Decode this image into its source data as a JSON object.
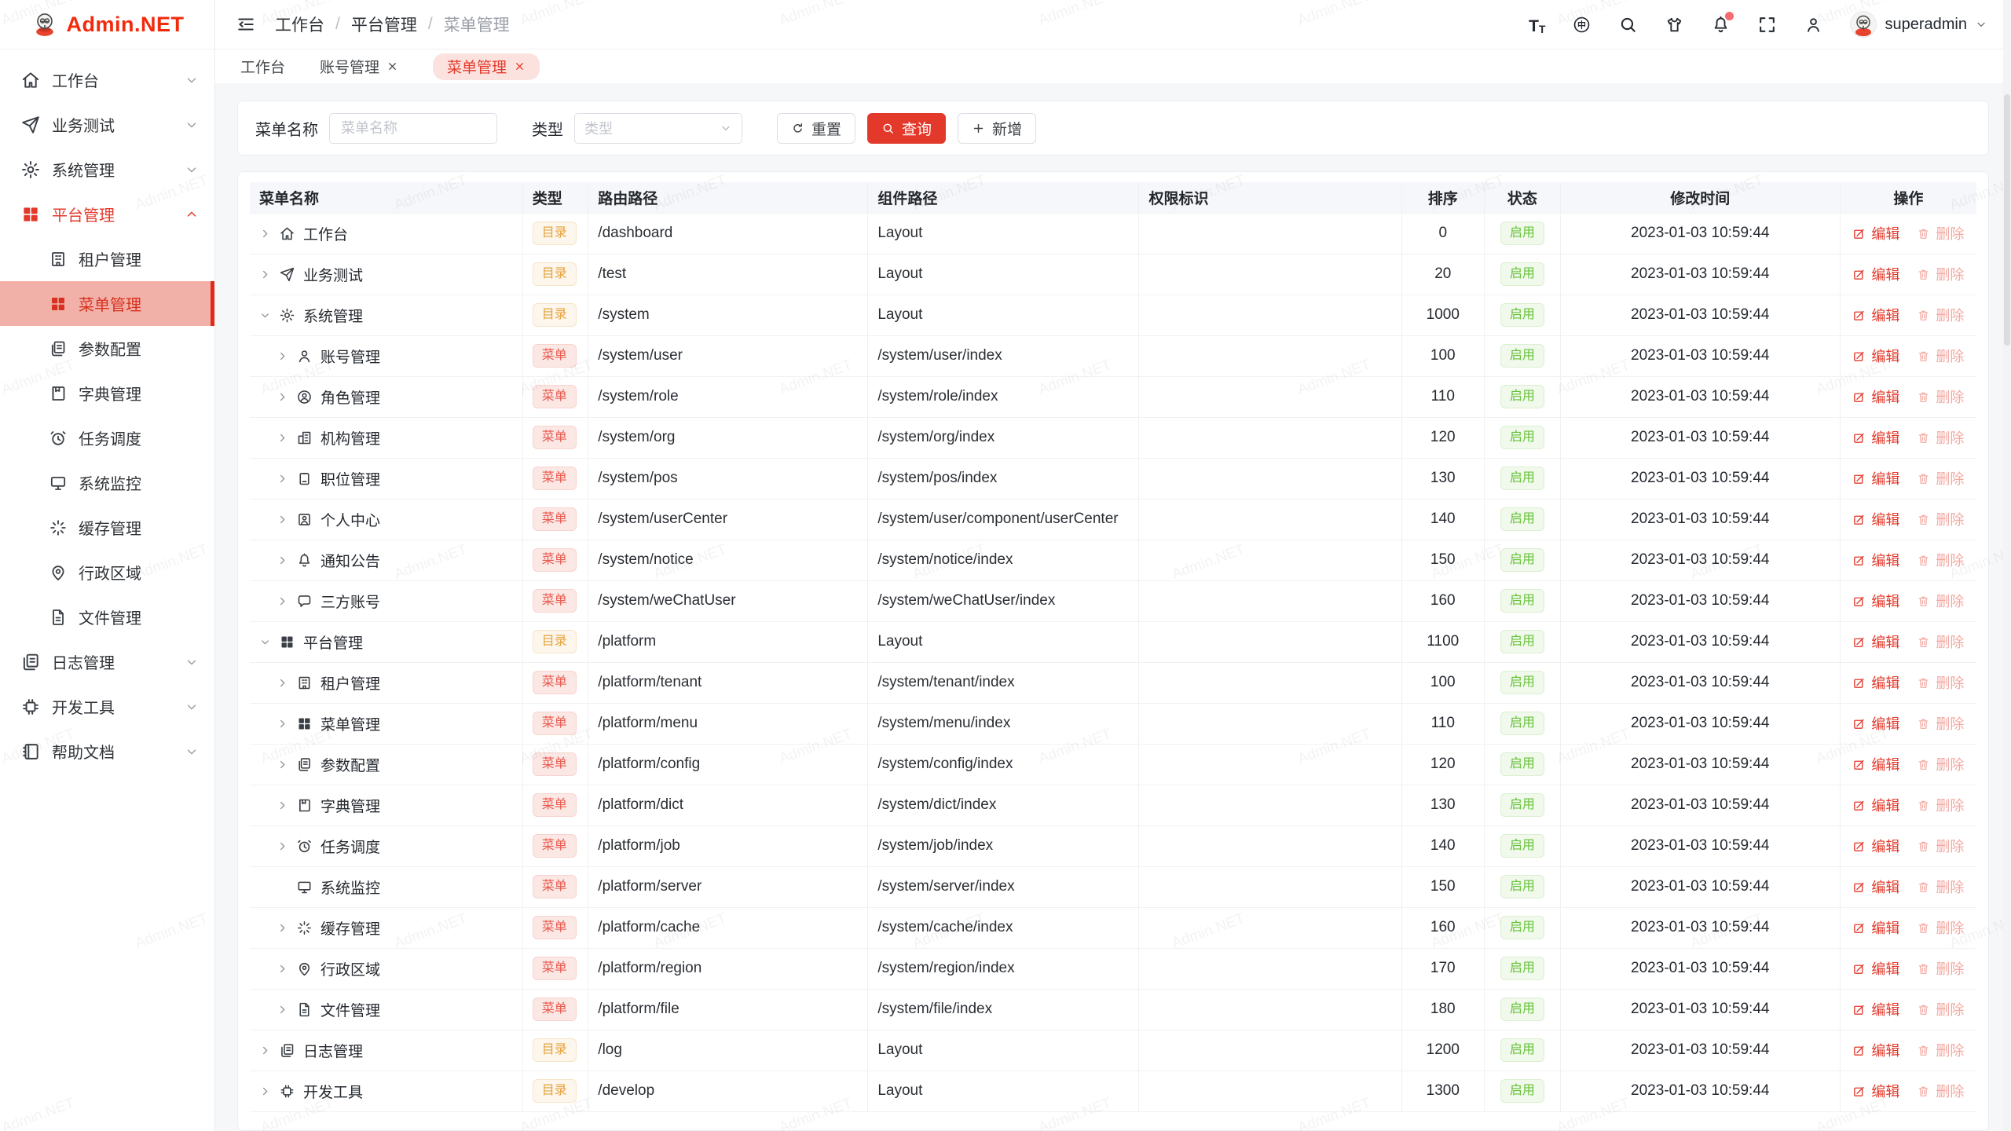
{
  "app": {
    "logo_text": "Admin.NET",
    "watermark": "Admin.NET",
    "accent_color": "#e3392b"
  },
  "sidebar": {
    "items": [
      {
        "label": "工作台",
        "icon": "home-icon",
        "chevron": "down"
      },
      {
        "label": "业务测试",
        "icon": "send-icon",
        "chevron": "down"
      },
      {
        "label": "系统管理",
        "icon": "gear-icon",
        "chevron": "down"
      },
      {
        "label": "平台管理",
        "icon": "grid-icon",
        "chevron": "up",
        "active_parent": true,
        "children": [
          {
            "label": "租户管理",
            "icon": "tenant-icon"
          },
          {
            "label": "菜单管理",
            "icon": "grid-icon",
            "active": true
          },
          {
            "label": "参数配置",
            "icon": "docs-icon"
          },
          {
            "label": "字典管理",
            "icon": "book-icon"
          },
          {
            "label": "任务调度",
            "icon": "alarm-icon"
          },
          {
            "label": "系统监控",
            "icon": "monitor-icon"
          },
          {
            "label": "缓存管理",
            "icon": "spinner-icon"
          },
          {
            "label": "行政区域",
            "icon": "pin-icon"
          },
          {
            "label": "文件管理",
            "icon": "file-icon"
          }
        ]
      },
      {
        "label": "日志管理",
        "icon": "logs-icon",
        "chevron": "down"
      },
      {
        "label": "开发工具",
        "icon": "chip-icon",
        "chevron": "down"
      },
      {
        "label": "帮助文档",
        "icon": "help-icon",
        "chevron": "down"
      }
    ]
  },
  "header": {
    "breadcrumb": [
      "工作台",
      "平台管理",
      "菜单管理"
    ],
    "tools": [
      "textsize-icon",
      "lang-icon",
      "search-icon",
      "theme-icon",
      "bell-icon",
      "fullscreen-icon",
      "person-icon"
    ],
    "bell_has_dot": true,
    "username": "superadmin"
  },
  "tabs": [
    {
      "label": "工作台",
      "closable": false,
      "active": false
    },
    {
      "label": "账号管理",
      "closable": true,
      "active": false
    },
    {
      "label": "菜单管理",
      "closable": true,
      "active": true
    }
  ],
  "search": {
    "name_label": "菜单名称",
    "name_placeholder": "菜单名称",
    "name_value": "",
    "type_label": "类型",
    "type_placeholder": "类型",
    "reset_label": "重置",
    "query_label": "查询",
    "add_label": "新增"
  },
  "table": {
    "columns": [
      "菜单名称",
      "类型",
      "路由路径",
      "组件路径",
      "权限标识",
      "排序",
      "状态",
      "修改时间",
      "操作"
    ],
    "col_widths": [
      "15.8%",
      "3.8%",
      "16.2%",
      "15.7%",
      "15.2%",
      "4.8%",
      "4.4%",
      "16.2%",
      "7.9%"
    ],
    "badge_labels": {
      "dir": "目录",
      "menu": "菜单"
    },
    "status_enabled": "启用",
    "edit_label": "编辑",
    "delete_label": "删除",
    "modified_time": "2023-01-03 10:59:44",
    "rows": [
      {
        "name": "工作台",
        "icon": "home-icon",
        "level": 0,
        "arrow": "right",
        "type": "dir",
        "route": "/dashboard",
        "component": "Layout",
        "perm": "",
        "sort": "0",
        "status": "启用"
      },
      {
        "name": "业务测试",
        "icon": "send-icon",
        "level": 0,
        "arrow": "right",
        "type": "dir",
        "route": "/test",
        "component": "Layout",
        "perm": "",
        "sort": "20",
        "status": "启用"
      },
      {
        "name": "系统管理",
        "icon": "gear-icon",
        "level": 0,
        "arrow": "down",
        "type": "dir",
        "route": "/system",
        "component": "Layout",
        "perm": "",
        "sort": "1000",
        "status": "启用"
      },
      {
        "name": "账号管理",
        "icon": "user-icon",
        "level": 1,
        "arrow": "right",
        "type": "menu",
        "route": "/system/user",
        "component": "/system/user/index",
        "perm": "",
        "sort": "100",
        "status": "启用"
      },
      {
        "name": "角色管理",
        "icon": "role-icon",
        "level": 1,
        "arrow": "right",
        "type": "menu",
        "route": "/system/role",
        "component": "/system/role/index",
        "perm": "",
        "sort": "110",
        "status": "启用"
      },
      {
        "name": "机构管理",
        "icon": "org-icon",
        "level": 1,
        "arrow": "right",
        "type": "menu",
        "route": "/system/org",
        "component": "/system/org/index",
        "perm": "",
        "sort": "120",
        "status": "启用"
      },
      {
        "name": "职位管理",
        "icon": "pos-icon",
        "level": 1,
        "arrow": "right",
        "type": "menu",
        "route": "/system/pos",
        "component": "/system/pos/index",
        "perm": "",
        "sort": "130",
        "status": "启用"
      },
      {
        "name": "个人中心",
        "icon": "usercenter-icon",
        "level": 1,
        "arrow": "right",
        "type": "menu",
        "route": "/system/userCenter",
        "component": "/system/user/component/userCenter",
        "perm": "",
        "sort": "140",
        "status": "启用"
      },
      {
        "name": "通知公告",
        "icon": "bell-icon",
        "level": 1,
        "arrow": "right",
        "type": "menu",
        "route": "/system/notice",
        "component": "/system/notice/index",
        "perm": "",
        "sort": "150",
        "status": "启用"
      },
      {
        "name": "三方账号",
        "icon": "chat-icon",
        "level": 1,
        "arrow": "right",
        "type": "menu",
        "route": "/system/weChatUser",
        "component": "/system/weChatUser/index",
        "perm": "",
        "sort": "160",
        "status": "启用"
      },
      {
        "name": "平台管理",
        "icon": "grid-icon",
        "level": 0,
        "arrow": "down",
        "type": "dir",
        "route": "/platform",
        "component": "Layout",
        "perm": "",
        "sort": "1100",
        "status": "启用"
      },
      {
        "name": "租户管理",
        "icon": "tenant-icon",
        "level": 1,
        "arrow": "right",
        "type": "menu",
        "route": "/platform/tenant",
        "component": "/system/tenant/index",
        "perm": "",
        "sort": "100",
        "status": "启用"
      },
      {
        "name": "菜单管理",
        "icon": "grid-icon",
        "level": 1,
        "arrow": "right",
        "type": "menu",
        "route": "/platform/menu",
        "component": "/system/menu/index",
        "perm": "",
        "sort": "110",
        "status": "启用"
      },
      {
        "name": "参数配置",
        "icon": "docs-icon",
        "level": 1,
        "arrow": "right",
        "type": "menu",
        "route": "/platform/config",
        "component": "/system/config/index",
        "perm": "",
        "sort": "120",
        "status": "启用"
      },
      {
        "name": "字典管理",
        "icon": "book-icon",
        "level": 1,
        "arrow": "right",
        "type": "menu",
        "route": "/platform/dict",
        "component": "/system/dict/index",
        "perm": "",
        "sort": "130",
        "status": "启用"
      },
      {
        "name": "任务调度",
        "icon": "alarm-icon",
        "level": 1,
        "arrow": "right",
        "type": "menu",
        "route": "/platform/job",
        "component": "/system/job/index",
        "perm": "",
        "sort": "140",
        "status": "启用"
      },
      {
        "name": "系统监控",
        "icon": "monitor-icon",
        "level": 1,
        "arrow": "none",
        "type": "menu",
        "route": "/platform/server",
        "component": "/system/server/index",
        "perm": "",
        "sort": "150",
        "status": "启用"
      },
      {
        "name": "缓存管理",
        "icon": "spinner-icon",
        "level": 1,
        "arrow": "right",
        "type": "menu",
        "route": "/platform/cache",
        "component": "/system/cache/index",
        "perm": "",
        "sort": "160",
        "status": "启用"
      },
      {
        "name": "行政区域",
        "icon": "pin-icon",
        "level": 1,
        "arrow": "right",
        "type": "menu",
        "route": "/platform/region",
        "component": "/system/region/index",
        "perm": "",
        "sort": "170",
        "status": "启用"
      },
      {
        "name": "文件管理",
        "icon": "file-icon",
        "level": 1,
        "arrow": "right",
        "type": "menu",
        "route": "/platform/file",
        "component": "/system/file/index",
        "perm": "",
        "sort": "180",
        "status": "启用"
      },
      {
        "name": "日志管理",
        "icon": "logs-icon",
        "level": 0,
        "arrow": "right",
        "type": "dir",
        "route": "/log",
        "component": "Layout",
        "perm": "",
        "sort": "1200",
        "status": "启用"
      },
      {
        "name": "开发工具",
        "icon": "chip-icon",
        "level": 0,
        "arrow": "right",
        "type": "dir",
        "route": "/develop",
        "component": "Layout",
        "perm": "",
        "sort": "1300",
        "status": "启用"
      }
    ]
  }
}
